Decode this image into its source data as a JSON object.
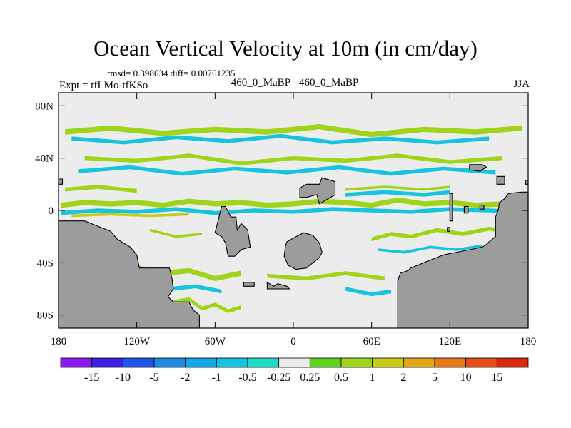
{
  "chart_data": {
    "type": "heatmap",
    "title": "Ocean Vertical Velocity at 10m (in cm/day)",
    "stats_text": "rmsd= 0.398634 diff= 0.00761235",
    "experiment_label": "Expt = tfLMo-tfKSo",
    "comparison_label": "460_0_MaBP - 460_0_MaBP",
    "season": "JJA",
    "x_axis": {
      "range": [
        -180,
        180
      ],
      "ticks": [
        {
          "value": -180,
          "label": "180"
        },
        {
          "value": -120,
          "label": "120W"
        },
        {
          "value": -60,
          "label": "60W"
        },
        {
          "value": 0,
          "label": "0"
        },
        {
          "value": 60,
          "label": "60E"
        },
        {
          "value": 120,
          "label": "120E"
        },
        {
          "value": 180,
          "label": "180"
        }
      ]
    },
    "y_axis": {
      "range": [
        -90,
        90
      ],
      "ticks": [
        {
          "value": 80,
          "label": "80N"
        },
        {
          "value": 40,
          "label": "40N"
        },
        {
          "value": 0,
          "label": "0"
        },
        {
          "value": -40,
          "label": "40S"
        },
        {
          "value": -80,
          "label": "80S"
        }
      ]
    },
    "colorbar": {
      "levels": [
        "-15",
        "-10",
        "-5",
        "-2",
        "-1",
        "-0.5",
        "-0.25",
        "0.25",
        "0.5",
        "1",
        "2",
        "5",
        "10",
        "15"
      ],
      "colors": [
        "#8b1aef",
        "#3c22e0",
        "#1f57e8",
        "#1e8ae4",
        "#12a8e6",
        "#17c3df",
        "#1edcc6",
        "#ececec",
        "#5fd31c",
        "#9fd41a",
        "#c8cd14",
        "#e0a716",
        "#e6781a",
        "#e64e18",
        "#d8280e"
      ]
    },
    "land_color": "#9c9c9c",
    "background_field_color": "#ececec",
    "land_regions": [
      {
        "name": "western-continent-south",
        "lon": [
          -180,
          -160,
          -150,
          -140,
          -135,
          -125,
          -120,
          -118,
          -95,
          -93,
          -92,
          -96,
          -92,
          -80,
          -77,
          -72,
          -72,
          -180
        ],
        "lat": [
          -8,
          -8,
          -12,
          -16,
          -22,
          -28,
          -34,
          -44,
          -44,
          -52,
          -60,
          -66,
          -70,
          -70,
          -76,
          -80,
          -90,
          -90
        ]
      },
      {
        "name": "western-continent-north-tip",
        "lon": [
          -180,
          -177,
          -177,
          -180
        ],
        "lat": [
          24,
          24,
          20,
          20
        ]
      },
      {
        "name": "eastern-continent",
        "lon": [
          180,
          175,
          165,
          162,
          158,
          157,
          155,
          155,
          150,
          148,
          145,
          135,
          115,
          100,
          90,
          88,
          82,
          80,
          80,
          180
        ],
        "lat": [
          14,
          14,
          13,
          9,
          6,
          0,
          -5,
          -20,
          -24,
          -26,
          -28,
          -30,
          -34,
          -40,
          -44,
          -46,
          -48,
          -54,
          -90,
          -90
        ]
      },
      {
        "name": "east-peninsula-a",
        "lon": [
          120,
          122,
          122,
          120
        ],
        "lat": [
          13,
          13,
          -8,
          -8
        ]
      },
      {
        "name": "east-peninsula-b",
        "lon": [
          131,
          134,
          134,
          131
        ],
        "lat": [
          3,
          3,
          -2,
          -2
        ]
      },
      {
        "name": "east-island-a",
        "lon": [
          118,
          120,
          120,
          118
        ],
        "lat": [
          -13,
          -13,
          -16,
          -16
        ]
      },
      {
        "name": "east-island-b",
        "lon": [
          143,
          146,
          146,
          143
        ],
        "lat": [
          4,
          4,
          1,
          1
        ]
      },
      {
        "name": "east-island-c",
        "lon": [
          156,
          162,
          162,
          156
        ],
        "lat": [
          26,
          26,
          20,
          20
        ]
      },
      {
        "name": "east-island-d",
        "lon": [
          178,
          180,
          180,
          178
        ],
        "lat": [
          23,
          23,
          20,
          20
        ]
      },
      {
        "name": "north-east-island",
        "lon": [
          135,
          145,
          148,
          143,
          135
        ],
        "lat": [
          35,
          35,
          33,
          30,
          31
        ]
      },
      {
        "name": "central-north-island",
        "lon": [
          5,
          10,
          20,
          22,
          32,
          32,
          20,
          18,
          10,
          5
        ],
        "lat": [
          17,
          20,
          20,
          25,
          22,
          12,
          5,
          12,
          10,
          10
        ]
      },
      {
        "name": "south-atlantic-landmass",
        "lon": [
          -55,
          -52,
          -48,
          -44,
          -43,
          -40,
          -35,
          -33,
          -40,
          -45,
          -50,
          -52,
          -55,
          -60
        ],
        "lat": [
          3,
          3,
          -5,
          -5,
          -15,
          -10,
          -15,
          -28,
          -30,
          -35,
          -35,
          -25,
          -20,
          -17
        ]
      },
      {
        "name": "central-ring-landmass",
        "lon": [
          -5,
          2,
          8,
          15,
          20,
          22,
          20,
          10,
          2,
          -4,
          -7,
          -6
        ],
        "lat": [
          -24,
          -20,
          -17,
          -19,
          -25,
          -32,
          -36,
          -44,
          -45,
          -42,
          -35,
          -27
        ]
      },
      {
        "name": "southern-island-a",
        "lon": [
          -38,
          -30,
          -30,
          -38
        ],
        "lat": [
          -55,
          -55,
          -58,
          -58
        ]
      },
      {
        "name": "southern-island-b",
        "lon": [
          -20,
          -15,
          -12,
          -5,
          -3,
          -20
        ],
        "lat": [
          -55,
          -58,
          -56,
          -58,
          -60,
          -60
        ]
      }
    ],
    "anomaly_bands": [
      {
        "kind": "positive",
        "level": "0.5",
        "lon": [
          -178,
          -160,
          -140,
          -120,
          -100,
          -80,
          -60,
          -40,
          -20,
          0,
          20,
          40,
          60,
          80,
          100,
          120,
          140,
          160,
          178
        ],
        "lat": [
          4,
          6,
          5,
          6,
          4,
          7,
          5,
          6,
          4,
          5,
          7,
          6,
          4,
          8,
          5,
          6,
          4,
          5,
          6
        ],
        "width": 4
      },
      {
        "kind": "negative",
        "level": "-0.5",
        "lon": [
          -178,
          -150,
          -120,
          -90,
          -60,
          -30,
          0,
          30,
          60,
          90,
          120,
          150,
          178
        ],
        "lat": [
          -2,
          0,
          -1,
          1,
          -2,
          0,
          -1,
          1,
          0,
          -1,
          1,
          0,
          -1
        ],
        "width": 3
      },
      {
        "kind": "positive",
        "level": "1",
        "lon": [
          -170,
          -140,
          -110,
          -80
        ],
        "lat": [
          -4,
          -3,
          -4,
          -3
        ],
        "width": 2
      },
      {
        "kind": "positive",
        "level": "0.5",
        "lon": [
          -175,
          -140,
          -100,
          -60,
          -20,
          20,
          60,
          100,
          140,
          175
        ],
        "lat": [
          60,
          63,
          59,
          62,
          60,
          64,
          58,
          62,
          60,
          63
        ],
        "width": 4
      },
      {
        "kind": "negative",
        "level": "-0.5",
        "lon": [
          -170,
          -130,
          -90,
          -50,
          -10,
          30,
          70,
          110,
          150
        ],
        "lat": [
          55,
          52,
          56,
          53,
          57,
          52,
          55,
          52,
          55
        ],
        "width": 3
      },
      {
        "kind": "positive",
        "level": "0.5",
        "lon": [
          -160,
          -120,
          -80,
          -40,
          0,
          40,
          80,
          120,
          160
        ],
        "lat": [
          40,
          38,
          42,
          36,
          40,
          38,
          42,
          37,
          40
        ],
        "width": 3
      },
      {
        "kind": "negative",
        "level": "-0.5",
        "lon": [
          -165,
          -125,
          -85,
          -45,
          -5,
          35,
          75,
          115,
          155
        ],
        "lat": [
          30,
          33,
          28,
          32,
          29,
          33,
          28,
          32,
          29
        ],
        "width": 3
      },
      {
        "kind": "positive",
        "level": "0.5",
        "lon": [
          -175,
          -150,
          -120
        ],
        "lat": [
          16,
          18,
          15
        ],
        "width": 3
      },
      {
        "kind": "negative",
        "level": "-0.5",
        "lon": [
          40,
          70,
          100,
          120
        ],
        "lat": [
          12,
          14,
          12,
          14
        ],
        "width": 3
      },
      {
        "kind": "positive",
        "level": "0.5",
        "lon": [
          40,
          70,
          100,
          120
        ],
        "lat": [
          16,
          18,
          16,
          18
        ],
        "width": 2
      },
      {
        "kind": "positive",
        "level": "0.5",
        "lon": [
          -120,
          -100,
          -80,
          -60,
          -40
        ],
        "lat": [
          -44,
          -48,
          -46,
          -52,
          -48
        ],
        "width": 4
      },
      {
        "kind": "negative",
        "level": "-0.5",
        "lon": [
          -115,
          -95,
          -75,
          -55
        ],
        "lat": [
          -56,
          -60,
          -58,
          -62
        ],
        "width": 3
      },
      {
        "kind": "positive",
        "level": "0.5",
        "lon": [
          -20,
          10,
          40,
          70
        ],
        "lat": [
          -50,
          -52,
          -48,
          -52
        ],
        "width": 3
      },
      {
        "kind": "negative",
        "level": "-0.5",
        "lon": [
          40,
          60,
          75
        ],
        "lat": [
          -60,
          -64,
          -62
        ],
        "width": 3
      },
      {
        "kind": "positive",
        "level": "0.5",
        "lon": [
          -92,
          -80,
          -70,
          -60,
          -50,
          -40
        ],
        "lat": [
          -70,
          -68,
          -75,
          -72,
          -77,
          -74
        ],
        "width": 3
      },
      {
        "kind": "positive",
        "level": "0.5",
        "lon": [
          60,
          75,
          90,
          110,
          130,
          150,
          170
        ],
        "lat": [
          -22,
          -18,
          -20,
          -15,
          -18,
          -14,
          -17
        ],
        "width": 3
      },
      {
        "kind": "negative",
        "level": "-0.5",
        "lon": [
          65,
          85,
          105,
          125,
          145
        ],
        "lat": [
          -30,
          -32,
          -28,
          -30,
          -27
        ],
        "width": 2
      },
      {
        "kind": "positive",
        "level": "0.5",
        "lon": [
          -110,
          -90,
          -70
        ],
        "lat": [
          -15,
          -20,
          -18
        ],
        "width": 2
      }
    ]
  }
}
